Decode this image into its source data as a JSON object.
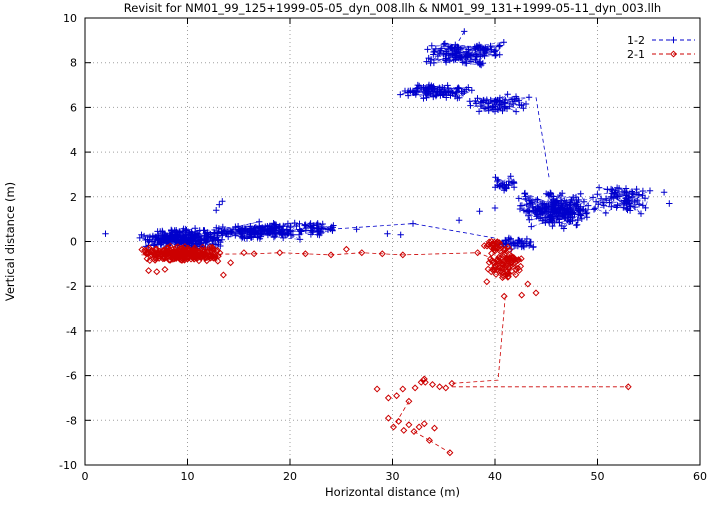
{
  "chart_data": {
    "type": "scatter",
    "title": "Revisit for NM01_99_125+1999-05-05_dyn_008.llh & NM01_99_131+1999-05-11_dyn_003.llh",
    "xlabel": "Horizontal distance (m)",
    "ylabel": "Vertical distance (m)",
    "xlim": [
      0,
      60
    ],
    "ylim": [
      -10,
      10
    ],
    "xticks": [
      0,
      10,
      20,
      30,
      40,
      50,
      60
    ],
    "yticks": [
      -10,
      -8,
      -6,
      -4,
      -2,
      0,
      2,
      4,
      6,
      8,
      10
    ],
    "grid": true,
    "legend_position": "top-right",
    "series": [
      {
        "name": "1-2",
        "color": "#0000cc",
        "marker": "plus",
        "clusters": [
          {
            "cx": 9.5,
            "cy": 0.1,
            "rx": 4.5,
            "ry": 0.5,
            "n": 240
          },
          {
            "cx": 17.0,
            "cy": 0.45,
            "rx": 5.5,
            "ry": 0.45,
            "n": 150
          },
          {
            "cx": 22.5,
            "cy": 0.55,
            "rx": 2.5,
            "ry": 0.35,
            "n": 40
          },
          {
            "cx": 37.0,
            "cy": 8.4,
            "rx": 4.5,
            "ry": 0.55,
            "n": 120
          },
          {
            "cx": 34.0,
            "cy": 6.7,
            "rx": 4.0,
            "ry": 0.35,
            "n": 90
          },
          {
            "cx": 40.5,
            "cy": 6.2,
            "rx": 3.5,
            "ry": 0.45,
            "n": 60
          },
          {
            "cx": 46.0,
            "cy": 1.4,
            "rx": 4.0,
            "ry": 0.9,
            "n": 220
          },
          {
            "cx": 52.5,
            "cy": 1.9,
            "rx": 3.0,
            "ry": 0.7,
            "n": 70
          },
          {
            "cx": 42.0,
            "cy": -0.1,
            "rx": 2.0,
            "ry": 0.35,
            "n": 40
          },
          {
            "cx": 41.0,
            "cy": 2.6,
            "rx": 1.5,
            "ry": 0.4,
            "n": 25
          }
        ],
        "points": [
          [
            2,
            0.35
          ],
          [
            12.8,
            1.4
          ],
          [
            13.1,
            1.65
          ],
          [
            13.4,
            1.8
          ],
          [
            26.5,
            0.55
          ],
          [
            29.5,
            0.35
          ],
          [
            30.8,
            0.3
          ],
          [
            32,
            0.8
          ],
          [
            36.5,
            0.95
          ],
          [
            37,
            9.4
          ],
          [
            56.5,
            2.2
          ],
          [
            57,
            1.7
          ],
          [
            40,
            1.5
          ],
          [
            38.5,
            1.35
          ]
        ],
        "connectors": [
          [
            [
              44,
              6.45
            ],
            [
              45.3,
              2.8
            ]
          ],
          [
            [
              24,
              0.55
            ],
            [
              32,
              0.8
            ],
            [
              40,
              0.15
            ]
          ],
          [
            [
              37,
              9.4
            ],
            [
              36,
              8.6
            ]
          ]
        ]
      },
      {
        "name": "2-1",
        "color": "#cc0000",
        "marker": "diamond",
        "clusters": [
          {
            "cx": 9.5,
            "cy": -0.55,
            "rx": 4.3,
            "ry": 0.35,
            "n": 240
          },
          {
            "cx": 41.0,
            "cy": -1.0,
            "rx": 1.8,
            "ry": 0.75,
            "n": 80
          },
          {
            "cx": 40.0,
            "cy": -0.2,
            "rx": 1.3,
            "ry": 0.25,
            "n": 25
          }
        ],
        "points": [
          [
            6.2,
            -1.3
          ],
          [
            7,
            -1.35
          ],
          [
            7.8,
            -1.25
          ],
          [
            13.5,
            -1.5
          ],
          [
            14.2,
            -0.95
          ],
          [
            15.5,
            -0.5
          ],
          [
            16.5,
            -0.55
          ],
          [
            19,
            -0.5
          ],
          [
            21.5,
            -0.55
          ],
          [
            24,
            -0.6
          ],
          [
            25.5,
            -0.35
          ],
          [
            27,
            -0.5
          ],
          [
            29,
            -0.55
          ],
          [
            31,
            -0.6
          ],
          [
            38.3,
            -0.5
          ],
          [
            44,
            -2.3
          ],
          [
            42.6,
            -2.4
          ],
          [
            40.9,
            -2.45
          ],
          [
            39.2,
            -1.8
          ],
          [
            43.2,
            -1.9
          ],
          [
            28.5,
            -6.6
          ],
          [
            29.6,
            -7.0
          ],
          [
            30.4,
            -6.9
          ],
          [
            31,
            -6.6
          ],
          [
            31.6,
            -7.15
          ],
          [
            32.2,
            -6.55
          ],
          [
            32.8,
            -6.3
          ],
          [
            33,
            -6.2
          ],
          [
            33.2,
            -6.3
          ],
          [
            33.1,
            -6.15
          ],
          [
            33.9,
            -6.4
          ],
          [
            34.6,
            -6.5
          ],
          [
            35.2,
            -6.55
          ],
          [
            35.8,
            -6.35
          ],
          [
            29.6,
            -7.9
          ],
          [
            30.1,
            -8.3
          ],
          [
            30.6,
            -8.05
          ],
          [
            31.1,
            -8.45
          ],
          [
            31.6,
            -8.2
          ],
          [
            32.1,
            -8.5
          ],
          [
            32.6,
            -8.3
          ],
          [
            33.1,
            -8.15
          ],
          [
            33.6,
            -8.9
          ],
          [
            34.1,
            -8.35
          ],
          [
            35.6,
            -9.45
          ],
          [
            53,
            -6.5
          ]
        ],
        "connectors": [
          [
            [
              5.5,
              -0.6
            ],
            [
              16.5,
              -0.55
            ],
            [
              19,
              -0.5
            ],
            [
              21.5,
              -0.55
            ],
            [
              24,
              -0.6
            ],
            [
              27,
              -0.5
            ],
            [
              31,
              -0.6
            ],
            [
              38.3,
              -0.5
            ],
            [
              40,
              -0.8
            ]
          ],
          [
            [
              41,
              -2.45
            ],
            [
              40.3,
              -6.2
            ],
            [
              35.8,
              -6.35
            ]
          ],
          [
            [
              35.8,
              -6.5
            ],
            [
              53,
              -6.5
            ]
          ],
          [
            [
              31.6,
              -7.15
            ],
            [
              30.1,
              -8.3
            ]
          ],
          [
            [
              32.1,
              -8.5
            ],
            [
              33.6,
              -8.9
            ]
          ],
          [
            [
              33.6,
              -8.9
            ],
            [
              35.6,
              -9.45
            ]
          ]
        ]
      }
    ],
    "legend": {
      "entries": [
        {
          "label": "1-2",
          "color": "#0000cc",
          "marker": "plus"
        },
        {
          "label": "2-1",
          "color": "#cc0000",
          "marker": "diamond"
        }
      ]
    }
  },
  "colors": {
    "grid": "#a0a0a0",
    "axis": "#000000",
    "background": "#ffffff"
  }
}
